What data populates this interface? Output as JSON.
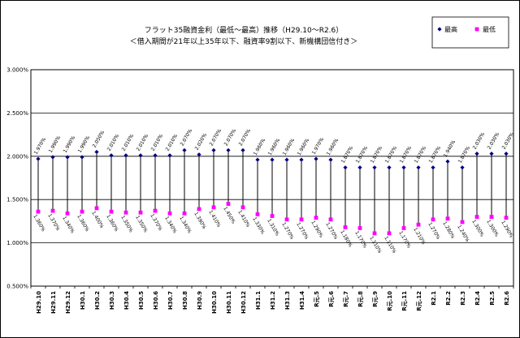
{
  "chart_data": {
    "type": "line",
    "title_lines": [
      "フラット35融資金利（最低～最高）推移（H29.10～R2.6）",
      "＜借入期間が21年以上35年以下、融資率9割以下、新機構団信付き＞"
    ],
    "xlabel": "",
    "ylabel": "",
    "ylim": [
      0.5,
      3.0
    ],
    "yticks": [
      {
        "value": 0.5,
        "label": "0.500%"
      },
      {
        "value": 1.0,
        "label": "1.000%"
      },
      {
        "value": 1.5,
        "label": "1.500%"
      },
      {
        "value": 2.0,
        "label": "2.000%"
      },
      {
        "value": 2.5,
        "label": "2.500%"
      },
      {
        "value": 3.0,
        "label": "3.000%"
      }
    ],
    "grid": true,
    "legend_position": "top-right",
    "categories": [
      "H29.10",
      "H29.11",
      "H29.12",
      "H30.1",
      "H30.2",
      "H30.3",
      "H30.4",
      "H30.5",
      "H30.6",
      "H30.7",
      "H30.8",
      "H30.9",
      "H30.10",
      "H30.11",
      "H30.12",
      "H31.1",
      "H31.2",
      "H31.3",
      "H31.4",
      "R元.5",
      "R元.6",
      "R元.7",
      "R元.8",
      "R元.9",
      "R元.10",
      "R元.11",
      "R元.12",
      "R2.1",
      "R2.2",
      "R2.3",
      "R2.4",
      "R2.5",
      "R2.6"
    ],
    "series": [
      {
        "name": "最高",
        "color": "#000080",
        "marker": "diamond",
        "values": [
          1.97,
          1.99,
          1.99,
          1.99,
          2.05,
          2.01,
          2.01,
          2.01,
          2.01,
          2.01,
          2.07,
          2.02,
          2.07,
          2.07,
          2.07,
          1.96,
          1.96,
          1.96,
          1.96,
          1.97,
          1.96,
          1.87,
          1.87,
          1.87,
          1.87,
          1.87,
          1.87,
          1.87,
          1.94,
          1.87,
          2.03,
          2.03,
          2.03
        ],
        "labels": [
          "1.970%",
          "1.990%",
          "1.990%",
          "1.990%",
          "2.050%",
          "2.010%",
          "2.010%",
          "2.010%",
          "2.010%",
          "2.010%",
          "2.070%",
          "2.020%",
          "2.070%",
          "2.070%",
          "2.070%",
          "1.960%",
          "1.960%",
          "1.960%",
          "1.960%",
          "1.970%",
          "1.960%",
          "1.870%",
          "1.870%",
          "1.870%",
          "1.870%",
          "1.870%",
          "1.870%",
          "1.870%",
          "1.940%",
          "1.870%",
          "2.030%",
          "2.030%",
          "2.030%"
        ]
      },
      {
        "name": "最低",
        "color": "#ff00ff",
        "marker": "square",
        "values": [
          1.36,
          1.37,
          1.34,
          1.36,
          1.4,
          1.36,
          1.35,
          1.35,
          1.37,
          1.34,
          1.34,
          1.39,
          1.41,
          1.45,
          1.41,
          1.33,
          1.31,
          1.27,
          1.27,
          1.29,
          1.27,
          1.18,
          1.17,
          1.11,
          1.11,
          1.17,
          1.21,
          1.27,
          1.28,
          1.24,
          1.3,
          1.3,
          1.29
        ],
        "labels": [
          "1.360%",
          "1.370%",
          "1.340%",
          "1.360%",
          "1.400%",
          "1.360%",
          "1.350%",
          "1.350%",
          "1.370%",
          "1.340%",
          "1.340%",
          "1.390%",
          "1.410%",
          "1.450%",
          "1.410%",
          "1.330%",
          "1.310%",
          "1.270%",
          "1.270%",
          "1.290%",
          "1.270%",
          "1.180%",
          "1.170%",
          "1.110%",
          "1.110%",
          "1.170%",
          "1.210%",
          "1.270%",
          "1.280%",
          "1.240%",
          "1.300%",
          "1.300%",
          "1.290%"
        ]
      }
    ]
  }
}
